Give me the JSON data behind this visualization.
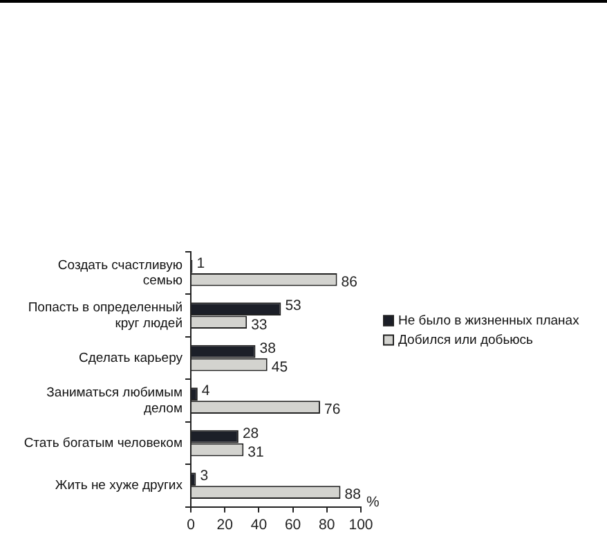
{
  "chart_data": {
    "type": "bar",
    "orientation": "horizontal",
    "categories": [
      "Создать счастливую семью",
      "Попасть в определенный круг людей",
      "Сделать карьеру",
      "Заниматься любимым делом",
      "Стать богатым человеком",
      "Жить не хуже других"
    ],
    "series": [
      {
        "name": "Не было в жизненных планах",
        "color": "#1c1f28",
        "values": [
          1,
          53,
          38,
          4,
          28,
          3
        ]
      },
      {
        "name": "Добился или добьюсь",
        "color": "#d3d3cf",
        "values": [
          86,
          33,
          45,
          76,
          31,
          88
        ]
      }
    ],
    "xlim": [
      0,
      100
    ],
    "xticks": [
      0,
      20,
      40,
      60,
      80,
      100
    ],
    "xlabel": "%",
    "data_labels": true,
    "grid": false,
    "legend": "right"
  }
}
